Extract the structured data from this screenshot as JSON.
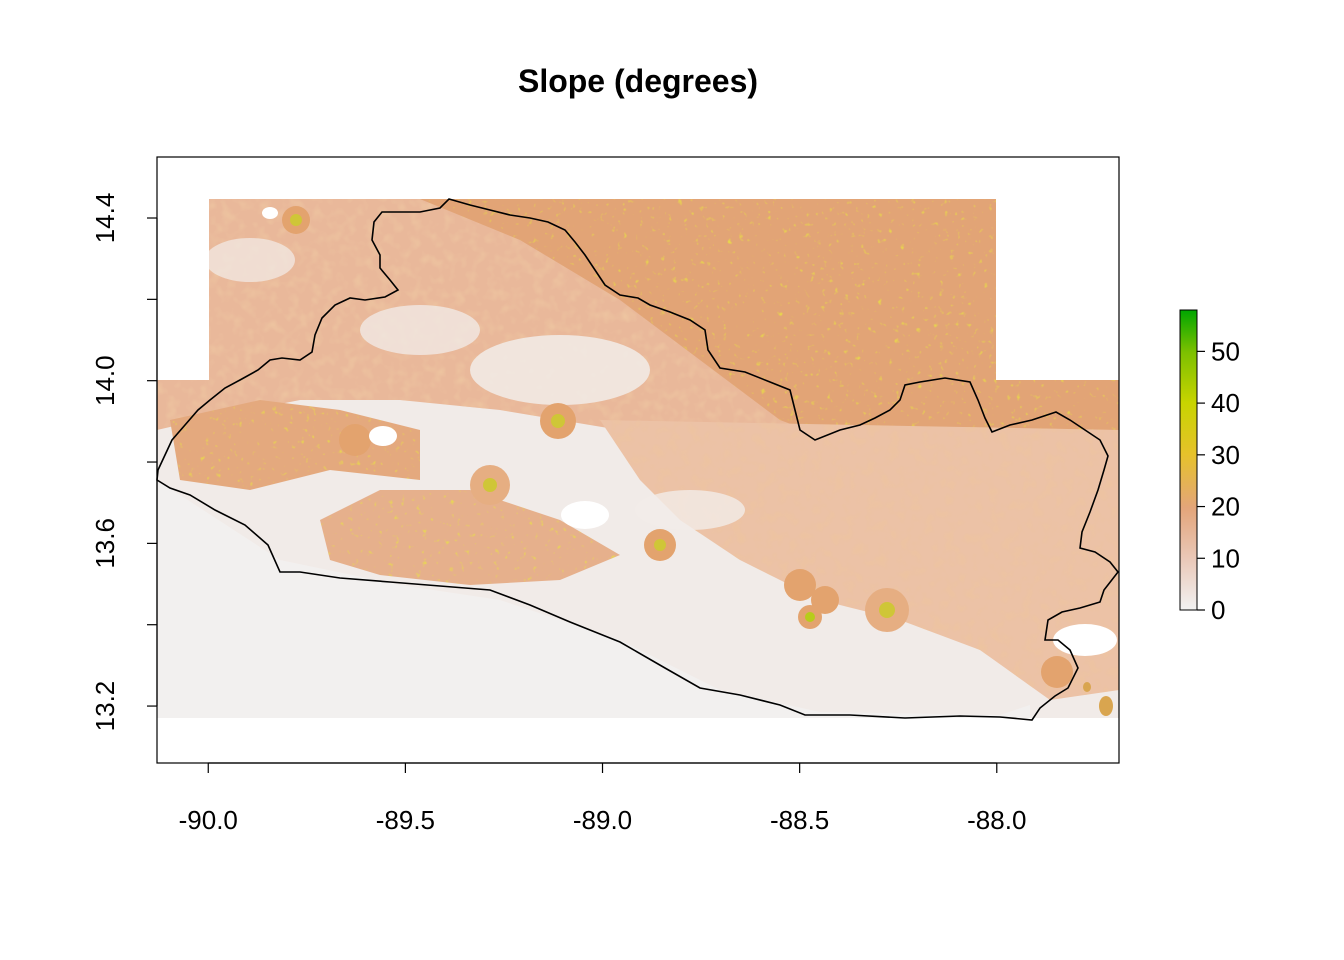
{
  "title": "Slope (degrees)",
  "map": {
    "type": "raster",
    "x_range": [
      -90.13,
      -87.69
    ],
    "y_range": [
      13.06,
      14.55
    ],
    "x_ticks": [
      {
        "value": -90.0,
        "label": "-90.0"
      },
      {
        "value": -89.5,
        "label": "-89.5"
      },
      {
        "value": -89.0,
        "label": "-89.0"
      },
      {
        "value": -88.5,
        "label": "-88.5"
      },
      {
        "value": -88.0,
        "label": "-88.0"
      }
    ],
    "y_ticks": [
      {
        "value": 13.2,
        "label": "13.2"
      },
      {
        "value": 13.4,
        "label": ""
      },
      {
        "value": 13.6,
        "label": "13.6"
      },
      {
        "value": 13.8,
        "label": ""
      },
      {
        "value": 14.0,
        "label": "14.0"
      },
      {
        "value": 14.2,
        "label": ""
      },
      {
        "value": 14.4,
        "label": "14.4"
      }
    ]
  },
  "legend": {
    "min": 0,
    "max": 58,
    "ticks": [
      {
        "value": 0,
        "label": "0"
      },
      {
        "value": 10,
        "label": "10"
      },
      {
        "value": 20,
        "label": "20"
      },
      {
        "value": 30,
        "label": "30"
      },
      {
        "value": 40,
        "label": "40"
      },
      {
        "value": 50,
        "label": "50"
      }
    ],
    "colors": [
      "#f2f2f2",
      "#eac8b8",
      "#e3a57a",
      "#e6c22a",
      "#c8d400",
      "#7cc000",
      "#00a600"
    ]
  }
}
